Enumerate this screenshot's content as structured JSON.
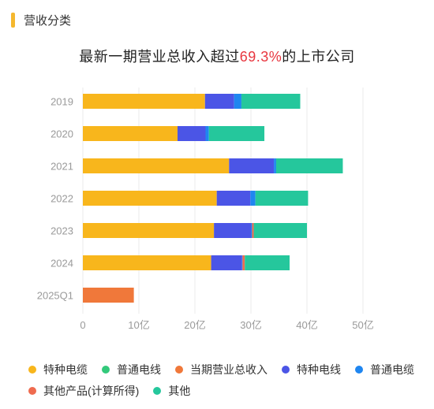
{
  "header": {
    "section_title": "营收分类",
    "accent_color": "#f5b82e"
  },
  "chart_title": {
    "prefix": "最新一期营业总收入超过",
    "highlight": "69.3%",
    "suffix": "的上市公司",
    "highlight_color": "#e8363f"
  },
  "chart_data": {
    "type": "bar",
    "orientation": "horizontal",
    "stacked": true,
    "categories": [
      "2019",
      "2020",
      "2021",
      "2022",
      "2023",
      "2024",
      "2025Q1"
    ],
    "xlim": [
      0,
      50
    ],
    "x_ticks": [
      "0",
      "10亿",
      "20亿",
      "30亿",
      "40亿",
      "50亿"
    ],
    "x_tick_values": [
      0,
      10,
      20,
      30,
      40,
      50
    ],
    "grid": "vertical",
    "legend_position": "bottom",
    "series": [
      {
        "name": "特种电缆",
        "color": "#f8b61c",
        "values": [
          21.8,
          16.9,
          26.1,
          23.9,
          23.4,
          22.9,
          0
        ]
      },
      {
        "name": "普通电线",
        "color": "#33c97b",
        "values": [
          0,
          0,
          0,
          0,
          0,
          0,
          0
        ]
      },
      {
        "name": "当期营业总收入",
        "color": "#f0783a",
        "values": [
          0,
          0,
          0,
          0,
          0,
          0,
          9.1
        ]
      },
      {
        "name": "特种电线",
        "color": "#4b55e6",
        "values": [
          5.2,
          5.0,
          8.0,
          6.0,
          6.6,
          5.5,
          0
        ]
      },
      {
        "name": "普通电缆",
        "color": "#1f86f0",
        "values": [
          1.3,
          0.6,
          0.4,
          0.9,
          0.2,
          0.1,
          0
        ]
      },
      {
        "name": "其他产品(计算所得)",
        "color": "#ef6b4f",
        "values": [
          0,
          0,
          0,
          0,
          0.3,
          0.4,
          0
        ]
      },
      {
        "name": "其他",
        "color": "#25c79c",
        "values": [
          10.5,
          9.9,
          11.9,
          9.4,
          9.5,
          8.0,
          0
        ]
      }
    ]
  }
}
